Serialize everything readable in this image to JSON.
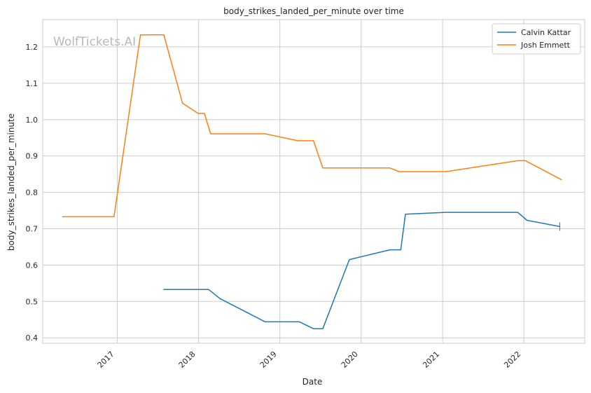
{
  "chart_data": {
    "type": "line",
    "title": "body_strikes_landed_per_minute over time",
    "xlabel": "Date",
    "ylabel": "body_strikes_landed_per_minute",
    "watermark": "WolfTickets.AI",
    "x_axis": {
      "type": "date",
      "min": "2016-02-01",
      "max": "2022-10-01"
    },
    "ylim": [
      0.385,
      1.275
    ],
    "x_ticks": [
      {
        "date": "2017-01-01",
        "label": "2017"
      },
      {
        "date": "2018-01-01",
        "label": "2018"
      },
      {
        "date": "2019-01-01",
        "label": "2019"
      },
      {
        "date": "2020-01-01",
        "label": "2020"
      },
      {
        "date": "2021-01-01",
        "label": "2021"
      },
      {
        "date": "2022-01-01",
        "label": "2022"
      }
    ],
    "y_ticks": [
      {
        "value": 0.4,
        "label": "0.4"
      },
      {
        "value": 0.5,
        "label": "0.5"
      },
      {
        "value": 0.6,
        "label": "0.6"
      },
      {
        "value": 0.7,
        "label": "0.7"
      },
      {
        "value": 0.8,
        "label": "0.8"
      },
      {
        "value": 0.9,
        "label": "0.9"
      },
      {
        "value": 1.0,
        "label": "1.0"
      },
      {
        "value": 1.1,
        "label": "1.1"
      },
      {
        "value": 1.2,
        "label": "1.2"
      }
    ],
    "grid": true,
    "legend_position": "top-right",
    "series": [
      {
        "name": "Calvin Kattar",
        "color": "#1f77b4",
        "points": [
          {
            "x": "2017-07-29",
            "y": 0.533
          },
          {
            "x": "2018-02-15",
            "y": 0.533
          },
          {
            "x": "2018-04-07",
            "y": 0.508
          },
          {
            "x": "2018-10-27",
            "y": 0.444
          },
          {
            "x": "2019-03-30",
            "y": 0.444
          },
          {
            "x": "2019-06-01",
            "y": 0.425
          },
          {
            "x": "2019-07-13",
            "y": 0.425
          },
          {
            "x": "2019-11-09",
            "y": 0.615
          },
          {
            "x": "2020-05-09",
            "y": 0.642
          },
          {
            "x": "2020-06-27",
            "y": 0.642
          },
          {
            "x": "2020-07-18",
            "y": 0.74
          },
          {
            "x": "2021-01-16",
            "y": 0.745
          },
          {
            "x": "2021-12-04",
            "y": 0.745
          },
          {
            "x": "2022-01-15",
            "y": 0.723
          },
          {
            "x": "2022-06-11",
            "y": 0.706
          }
        ]
      },
      {
        "name": "Josh Emmett",
        "color": "#ff7f0e",
        "points": [
          {
            "x": "2016-04-30",
            "y": 0.733
          },
          {
            "x": "2016-12-17",
            "y": 0.733
          },
          {
            "x": "2017-04-15",
            "y": 1.233
          },
          {
            "x": "2017-07-29",
            "y": 1.233
          },
          {
            "x": "2017-10-21",
            "y": 1.045
          },
          {
            "x": "2017-12-30",
            "y": 1.017
          },
          {
            "x": "2018-01-27",
            "y": 1.017
          },
          {
            "x": "2018-02-24",
            "y": 0.961
          },
          {
            "x": "2018-10-27",
            "y": 0.961
          },
          {
            "x": "2019-03-23",
            "y": 0.942
          },
          {
            "x": "2019-06-01",
            "y": 0.942
          },
          {
            "x": "2019-07-13",
            "y": 0.867
          },
          {
            "x": "2020-05-09",
            "y": 0.867
          },
          {
            "x": "2020-06-20",
            "y": 0.857
          },
          {
            "x": "2021-01-16",
            "y": 0.857
          },
          {
            "x": "2021-12-04",
            "y": 0.887
          },
          {
            "x": "2022-01-08",
            "y": 0.887
          },
          {
            "x": "2022-06-18",
            "y": 0.835
          }
        ]
      }
    ]
  }
}
